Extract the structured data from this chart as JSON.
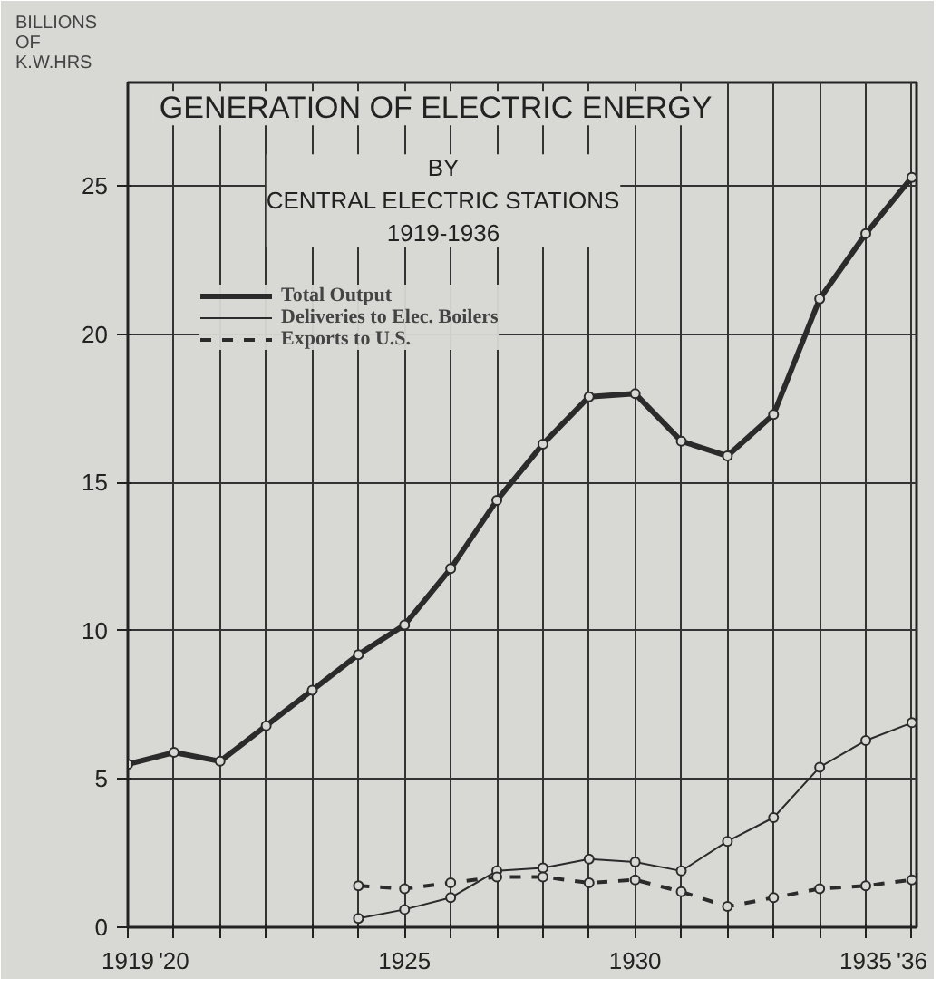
{
  "chart_data": {
    "type": "line",
    "title": "GENERATION OF ELECTRIC ENERGY",
    "subtitle": "BY\nCENTRAL ELECTRIC STATIONS\n1919-1936",
    "ylabel": "BILLIONS\nOF\nK.W.HRS",
    "x": [
      1919,
      1920,
      1921,
      1922,
      1923,
      1924,
      1925,
      1926,
      1927,
      1928,
      1929,
      1930,
      1931,
      1932,
      1933,
      1934,
      1935,
      1936
    ],
    "series": [
      {
        "name": "Total Output",
        "color": "#2b2b2b",
        "line_style": "solid",
        "values": [
          5.5,
          5.9,
          5.6,
          6.8,
          8.0,
          9.2,
          10.2,
          12.1,
          14.4,
          16.3,
          17.9,
          18.0,
          16.4,
          15.9,
          17.3,
          21.2,
          23.4,
          25.3
        ]
      },
      {
        "name": "Deliveries to Elec. Boilers",
        "color": "#2b2b2b",
        "line_style": "solid",
        "values": [
          null,
          null,
          null,
          null,
          null,
          0.3,
          0.6,
          1.0,
          1.9,
          2.0,
          2.3,
          2.2,
          1.9,
          2.9,
          3.7,
          5.4,
          6.3,
          6.9
        ]
      },
      {
        "name": "Exports to U.S.",
        "color": "#2b2b2b",
        "line_style": "dashed",
        "values": [
          null,
          null,
          null,
          null,
          null,
          1.4,
          1.3,
          1.5,
          1.7,
          1.7,
          1.5,
          1.6,
          1.2,
          0.7,
          1.0,
          1.3,
          1.4,
          1.6
        ]
      }
    ],
    "xlim": [
      1919,
      1936.1
    ],
    "ylim": [
      0,
      28.5
    ],
    "xticks": [
      1919,
      {
        "value": 1920,
        "label": "'20"
      },
      {
        "value": 1921,
        "label": null
      },
      {
        "value": 1922,
        "label": null
      },
      {
        "value": 1923,
        "label": null
      },
      {
        "value": 1924,
        "label": null
      },
      1925,
      {
        "value": 1926,
        "label": null
      },
      {
        "value": 1927,
        "label": null
      },
      {
        "value": 1928,
        "label": null
      },
      {
        "value": 1929,
        "label": null
      },
      1930,
      {
        "value": 1931,
        "label": null
      },
      {
        "value": 1932,
        "label": null
      },
      {
        "value": 1933,
        "label": null
      },
      {
        "value": 1934,
        "label": null
      },
      1935,
      {
        "value": 1936,
        "label": "'36"
      }
    ],
    "yticks": [
      0,
      5,
      10,
      15,
      20,
      25
    ],
    "grid": true,
    "legend": "top left",
    "marker": "circle"
  }
}
